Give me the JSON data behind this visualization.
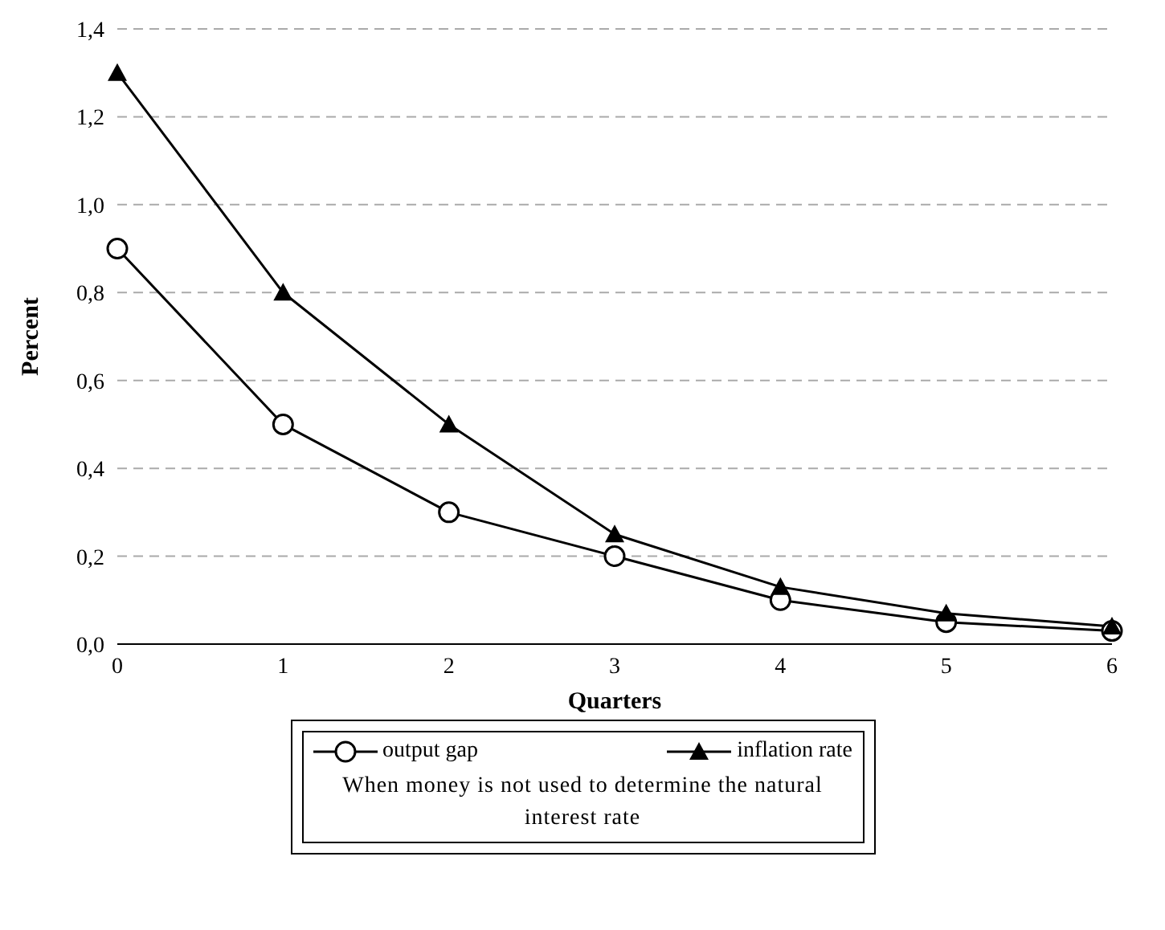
{
  "chart_data": {
    "type": "line",
    "xlabel": "Quarters",
    "ylabel": "Percent",
    "x": [
      0,
      1,
      2,
      3,
      4,
      5,
      6
    ],
    "series": [
      {
        "name": "output gap",
        "color": "#000000",
        "marker": "circle",
        "values": [
          0.9,
          0.5,
          0.3,
          0.2,
          0.1,
          0.05,
          0.03
        ]
      },
      {
        "name": "inflation rate",
        "color": "#000000",
        "marker": "triangle",
        "values": [
          1.3,
          0.8,
          0.5,
          0.25,
          0.13,
          0.07,
          0.04
        ]
      }
    ],
    "xlim": [
      0,
      6
    ],
    "xticks": [
      0,
      1,
      2,
      3,
      4,
      5,
      6
    ],
    "ylim": [
      0,
      1.4
    ],
    "yticks": [
      {
        "value": 0,
        "label": "0,0"
      },
      {
        "value": 0.2,
        "label": "0,2"
      },
      {
        "value": 0.4,
        "label": "0,4"
      },
      {
        "value": 0.6,
        "label": "0,6"
      },
      {
        "value": 0.8,
        "label": "0,8"
      },
      {
        "value": 1.0,
        "label": "1,0"
      },
      {
        "value": 1.2,
        "label": "1,2"
      },
      {
        "value": 1.4,
        "label": "1,4"
      }
    ],
    "grid": "y",
    "legend": "bottom",
    "line_style": "solid",
    "annotations": [
      "When money is not used to determine the natural interest rate"
    ]
  }
}
